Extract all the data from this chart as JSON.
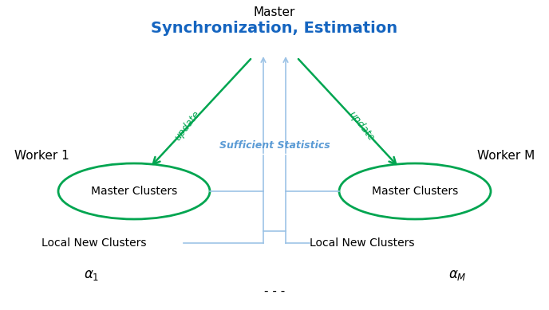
{
  "background_color": "#ffffff",
  "master_text": "Master",
  "sync_text": "Synchronization, Estimation",
  "worker1_text": "Worker 1",
  "workerM_text": "Worker M",
  "cluster_text": "Master Clusters",
  "local_new_text": "Local New Clusters",
  "sufficient_stats_text": "Sufficient Statistics",
  "update_text": "update",
  "dots_text": "- - -",
  "master_color": "#000000",
  "sync_color": "#1565C0",
  "worker_color": "#000000",
  "cluster_text_color": "#000000",
  "local_new_color": "#000000",
  "sufficient_stats_color": "#5B9BD5",
  "update_color": "#00A550",
  "arrow_green_color": "#00A550",
  "arrow_blue_color": "#9DC3E6",
  "ellipse_edge_color": "#00A550",
  "ellipse_face_color": "#ffffff",
  "bracket_color": "#9DC3E6"
}
